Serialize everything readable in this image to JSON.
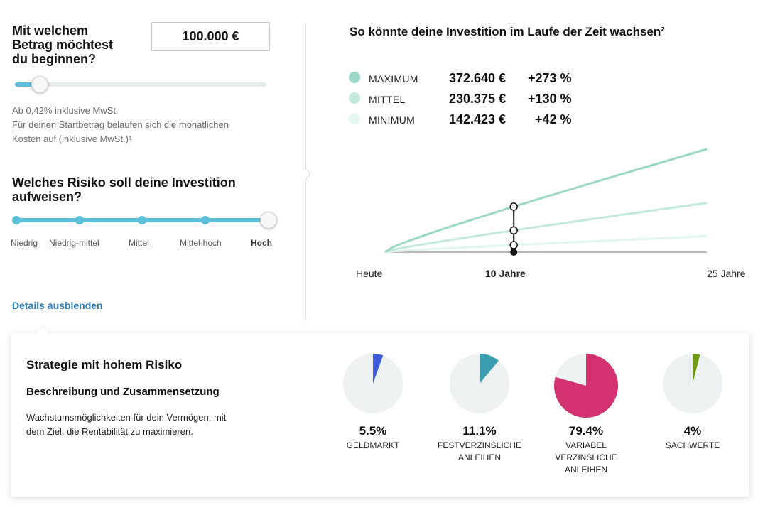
{
  "amount": {
    "question_line1": "Mit welchem",
    "question_line2": "Betrag möchtest",
    "question_line3": "du beginnen?",
    "value": "100.000 €",
    "slider_fraction": 0.1
  },
  "cost_note": {
    "line1": "Ab 0,42% inklusive MwSt.",
    "line2": "Für deinen Startbetrag belaufen sich die monatlichen",
    "line3": "Kosten auf (inklusive MwSt.)¹"
  },
  "risk": {
    "question_line1": "Welches Risiko soll deine Investition",
    "question_line2": "aufweisen?",
    "levels": [
      "Niedrig",
      "Niedrig-mittel",
      "Mittel",
      "Mittel-hoch",
      "Hoch"
    ],
    "selected": "Hoch"
  },
  "details_link": "Details ausblenden",
  "projection": {
    "title": "So könnte deine Investition im Laufe der Zeit wachsen²",
    "legend": [
      {
        "name": "MAXIMUM",
        "value": "372.640 €",
        "change": "+273 %",
        "color": "#9cd6c6"
      },
      {
        "name": "MITTEL",
        "value": "230.375 €",
        "change": "+130 %",
        "color": "#c3e9df"
      },
      {
        "name": "MINIMUM",
        "value": "142.423 €",
        "change": "+42 %",
        "color": "#e4f7f2"
      }
    ],
    "x_labels": {
      "start": "Heute",
      "mid": "10 Jahre",
      "end": "25 Jahre"
    }
  },
  "chart_data": {
    "type": "line",
    "title": "So könnte deine Investition im Laufe der Zeit wachsen²",
    "x_unit": "Jahre",
    "x": [
      0,
      10,
      25
    ],
    "start_value": 100000,
    "end_year": 25,
    "marker_year": 10,
    "series": [
      {
        "name": "MAXIMUM",
        "end_value": 372640,
        "change": "+273 %",
        "color": "#9cd6c6"
      },
      {
        "name": "MITTEL",
        "end_value": 230375,
        "change": "+130 %",
        "color": "#c3e9df"
      },
      {
        "name": "MINIMUM",
        "end_value": 142423,
        "change": "+42 %",
        "color": "#e4f7f2"
      }
    ]
  },
  "strategy": {
    "title": "Strategie mit hohem Risiko",
    "subtitle": "Beschreibung und Zusammensetzung",
    "desc_line1": "Wachstumsmöglichkeiten für dein Vermögen, mit",
    "desc_line2": "dem Ziel, die Rentabilität zu maximieren.",
    "allocations": [
      {
        "pct_label": "5.5%",
        "value": 5.5,
        "name_lines": [
          "GELDMARKT"
        ],
        "color": "#3d5bd6"
      },
      {
        "pct_label": "11.1%",
        "value": 11.1,
        "name_lines": [
          "FESTVERZINSLICHE",
          "ANLEIHEN"
        ],
        "color": "#3a9db0"
      },
      {
        "pct_label": "79.4%",
        "value": 79.4,
        "name_lines": [
          "VARIABEL",
          "VERZINSLICHE",
          "ANLEIHEN"
        ],
        "color": "#d2326f"
      },
      {
        "pct_label": "4%",
        "value": 4,
        "name_lines": [
          "SACHWERTE"
        ],
        "color": "#6e9a14"
      }
    ],
    "pie_bg": "#eef1f2"
  }
}
